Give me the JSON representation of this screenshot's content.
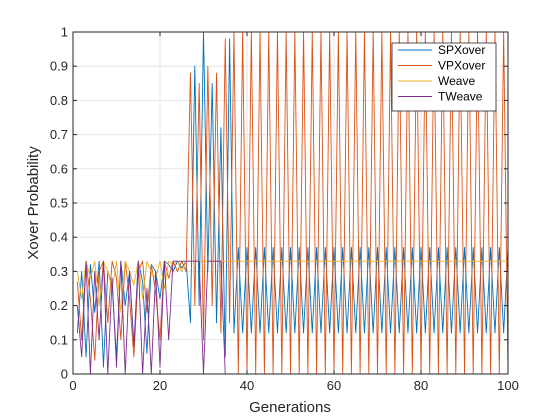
{
  "chart_data": {
    "type": "line",
    "title": "",
    "xlabel": "Generations",
    "ylabel": "Xover Probability",
    "xlim": [
      0,
      100
    ],
    "ylim": [
      0,
      1
    ],
    "xticks": [
      0,
      20,
      40,
      60,
      80,
      100
    ],
    "yticks": [
      0,
      0.1,
      0.2,
      0.3,
      0.4,
      0.5,
      0.6,
      0.7,
      0.8,
      0.9,
      1
    ],
    "grid": true,
    "legend_position": "top-right",
    "series": [
      {
        "name": "SPXover",
        "color": "#0072BD",
        "x": [
          1,
          2,
          3,
          4,
          5,
          6,
          7,
          8,
          9,
          10,
          11,
          12,
          13,
          14,
          15,
          16,
          17,
          18,
          19,
          20,
          21,
          22,
          23,
          24,
          25,
          26,
          27,
          28,
          29,
          30,
          31,
          32,
          33,
          34,
          35,
          36,
          37,
          38,
          39,
          40,
          41,
          42,
          43,
          44,
          45,
          46,
          47,
          48,
          49,
          50,
          51,
          52,
          53,
          54,
          55,
          56,
          57,
          58,
          59,
          60,
          61,
          62,
          63,
          64,
          65,
          66,
          67,
          68,
          69,
          70,
          71,
          72,
          73,
          74,
          75,
          76,
          77,
          78,
          79,
          80,
          81,
          82,
          83,
          84,
          85,
          86,
          87,
          88,
          89,
          90,
          91,
          92,
          93,
          94,
          95,
          96,
          97,
          98,
          99,
          100
        ],
        "y": [
          0.12,
          0.3,
          0.05,
          0.32,
          0.18,
          0.33,
          0.02,
          0.3,
          0.26,
          0.05,
          0.33,
          0.2,
          0.3,
          0.08,
          0.33,
          0.27,
          0.06,
          0.32,
          0.3,
          0.22,
          0.33,
          0.32,
          0.3,
          0.33,
          0.31,
          0.33,
          0.15,
          0.9,
          0.2,
          1.0,
          0.3,
          0.85,
          0.15,
          0.72,
          0.05,
          0.98,
          0.12,
          0.37,
          0.12,
          0.37,
          0.12,
          0.37,
          0.12,
          0.37,
          0.12,
          0.37,
          0.12,
          0.37,
          0.12,
          0.37,
          0.12,
          0.37,
          0.12,
          0.37,
          0.12,
          0.37,
          0.12,
          0.37,
          0.12,
          0.37,
          0.12,
          0.37,
          0.12,
          0.37,
          0.12,
          0.37,
          0.12,
          0.37,
          0.12,
          0.37,
          0.12,
          0.37,
          0.12,
          0.37,
          0.12,
          0.37,
          0.12,
          0.37,
          0.12,
          0.37,
          0.12,
          0.37,
          0.12,
          0.37,
          0.12,
          0.37,
          0.12,
          0.37,
          0.12,
          0.37,
          0.12,
          0.37,
          0.12,
          0.37,
          0.12,
          0.37,
          0.12,
          0.37,
          0.12,
          0.37
        ]
      },
      {
        "name": "VPXover",
        "color": "#D95319",
        "x": [
          1,
          2,
          3,
          4,
          5,
          6,
          7,
          8,
          9,
          10,
          11,
          12,
          13,
          14,
          15,
          16,
          17,
          18,
          19,
          20,
          21,
          22,
          23,
          24,
          25,
          26,
          27,
          28,
          29,
          30,
          31,
          32,
          33,
          34,
          35,
          36,
          37,
          38,
          39,
          40,
          41,
          42,
          43,
          44,
          45,
          46,
          47,
          48,
          49,
          50,
          51,
          52,
          53,
          54,
          55,
          56,
          57,
          58,
          59,
          60,
          61,
          62,
          63,
          64,
          65,
          66,
          67,
          68,
          69,
          70,
          71,
          72,
          73,
          74,
          75,
          76,
          77,
          78,
          79,
          80,
          81,
          82,
          83,
          84,
          85,
          86,
          87,
          88,
          89,
          90,
          91,
          92,
          93,
          94,
          95,
          96,
          97,
          98,
          99,
          100
        ],
        "y": [
          0.27,
          0.1,
          0.33,
          0.22,
          0.04,
          0.3,
          0.33,
          0.15,
          0.33,
          0.28,
          0.1,
          0.33,
          0.22,
          0.05,
          0.3,
          0.33,
          0.18,
          0.32,
          0.24,
          0.1,
          0.33,
          0.28,
          0.33,
          0.3,
          0.33,
          0.3,
          0.88,
          0.2,
          0.85,
          0.1,
          0.9,
          0.2,
          0.88,
          0.12,
          0.98,
          0.15,
          1.0,
          0.0,
          1.0,
          0.0,
          1.0,
          0.0,
          1.0,
          0.0,
          1.0,
          0.0,
          1.0,
          0.0,
          1.0,
          0.0,
          1.0,
          0.0,
          1.0,
          0.0,
          1.0,
          0.0,
          1.0,
          0.0,
          1.0,
          0.0,
          1.0,
          0.0,
          1.0,
          0.0,
          1.0,
          0.0,
          1.0,
          0.0,
          1.0,
          0.0,
          1.0,
          0.0,
          1.0,
          0.0,
          1.0,
          0.0,
          1.0,
          0.0,
          1.0,
          0.0,
          1.0,
          0.0,
          1.0,
          0.0,
          1.0,
          0.0,
          1.0,
          0.0,
          1.0,
          0.0,
          1.0,
          0.0,
          1.0,
          0.0,
          1.0,
          0.0,
          1.0,
          0.0,
          1.0,
          0.0
        ]
      },
      {
        "name": "Weave",
        "color": "#EDB120",
        "x": [
          1,
          2,
          3,
          4,
          5,
          6,
          7,
          8,
          9,
          10,
          11,
          12,
          13,
          14,
          15,
          16,
          17,
          18,
          19,
          20,
          21,
          22,
          23,
          24,
          25,
          26,
          27,
          28,
          29,
          30,
          31,
          32,
          33,
          34,
          35,
          36,
          37,
          38,
          39,
          40,
          41,
          42,
          43,
          44,
          45,
          46,
          47,
          48,
          49,
          50,
          51,
          52,
          53,
          54,
          55,
          56,
          57,
          58,
          59,
          60,
          61,
          62,
          63,
          64,
          65,
          66,
          67,
          68,
          69,
          70,
          71,
          72,
          73,
          74,
          75,
          76,
          77,
          78,
          79,
          80,
          81,
          82,
          83,
          84,
          85,
          86,
          87,
          88,
          89,
          90,
          91,
          92,
          93,
          94,
          95,
          96,
          97,
          98,
          99,
          100
        ],
        "y": [
          0.3,
          0.22,
          0.33,
          0.28,
          0.33,
          0.2,
          0.33,
          0.3,
          0.25,
          0.33,
          0.18,
          0.33,
          0.3,
          0.26,
          0.33,
          0.22,
          0.33,
          0.3,
          0.28,
          0.33,
          0.25,
          0.33,
          0.32,
          0.33,
          0.3,
          0.33,
          0.33,
          0.33,
          0.33,
          0.33,
          0.33,
          0.33,
          0.33,
          0.33,
          0.33,
          0.33,
          0.33,
          0.33,
          0.33,
          0.33,
          0.33,
          0.33,
          0.33,
          0.33,
          0.33,
          0.33,
          0.33,
          0.33,
          0.33,
          0.33,
          0.33,
          0.33,
          0.33,
          0.33,
          0.33,
          0.33,
          0.33,
          0.33,
          0.33,
          0.33,
          0.33,
          0.33,
          0.33,
          0.33,
          0.33,
          0.33,
          0.33,
          0.33,
          0.33,
          0.33,
          0.33,
          0.33,
          0.33,
          0.33,
          0.33,
          0.33,
          0.33,
          0.33,
          0.33,
          0.33,
          0.33,
          0.33,
          0.33,
          0.33,
          0.33,
          0.33,
          0.33,
          0.33,
          0.33,
          0.33,
          0.33,
          0.33,
          0.33,
          0.33,
          0.33,
          0.33,
          0.33,
          0.33,
          0.33,
          0.33
        ]
      },
      {
        "name": "TWeave",
        "color": "#7E2F8E",
        "x": [
          1,
          2,
          3,
          4,
          5,
          6,
          7,
          8,
          9,
          10,
          11,
          12,
          13,
          14,
          15,
          16,
          17,
          18,
          19,
          20,
          21,
          22,
          23,
          24,
          25,
          26,
          27,
          28,
          29,
          30,
          31,
          32,
          33,
          34,
          35,
          36,
          37,
          38,
          39,
          40,
          41,
          42,
          43,
          44,
          45,
          46,
          47,
          48,
          49,
          50,
          51,
          52,
          53,
          54,
          55,
          56,
          57,
          58,
          59,
          60,
          61,
          62,
          63,
          64,
          65,
          66,
          67,
          68,
          69,
          70,
          71,
          72,
          73,
          74,
          75,
          76,
          77,
          78,
          79,
          80,
          81,
          82,
          83,
          84,
          85,
          86,
          87,
          88,
          89,
          90,
          91,
          92,
          93,
          94,
          95,
          96,
          97,
          98,
          99,
          100
        ],
        "y": [
          0.2,
          0.05,
          0.33,
          0.0,
          0.3,
          0.1,
          0.33,
          0.0,
          0.28,
          0.02,
          0.33,
          0.0,
          0.3,
          0.08,
          0.33,
          0.0,
          0.25,
          0.0,
          0.3,
          0.02,
          0.33,
          0.1,
          0.33,
          0.33,
          0.33,
          0.33,
          0.33,
          0.33,
          0.33,
          0.0,
          0.33,
          0.33,
          0.33,
          0.33,
          0.0,
          0.0,
          0.0,
          0.0,
          0.0,
          0.0,
          0.0,
          0.0,
          0.0,
          0.0,
          0.0,
          0.0,
          0.0,
          0.0,
          0.0,
          0.0,
          0.0,
          0.0,
          0.0,
          0.0,
          0.0,
          0.0,
          0.0,
          0.0,
          0.0,
          0.0,
          0.0,
          0.0,
          0.0,
          0.0,
          0.0,
          0.0,
          0.0,
          0.0,
          0.0,
          0.0,
          0.0,
          0.0,
          0.0,
          0.0,
          0.0,
          0.0,
          0.0,
          0.0,
          0.0,
          0.0,
          0.0,
          0.0,
          0.0,
          0.0,
          0.0,
          0.0,
          0.0,
          0.0,
          0.0,
          0.0,
          0.0,
          0.0,
          0.0,
          0.0,
          0.0,
          0.0,
          0.0,
          0.0,
          0.0,
          0.0
        ]
      }
    ]
  }
}
